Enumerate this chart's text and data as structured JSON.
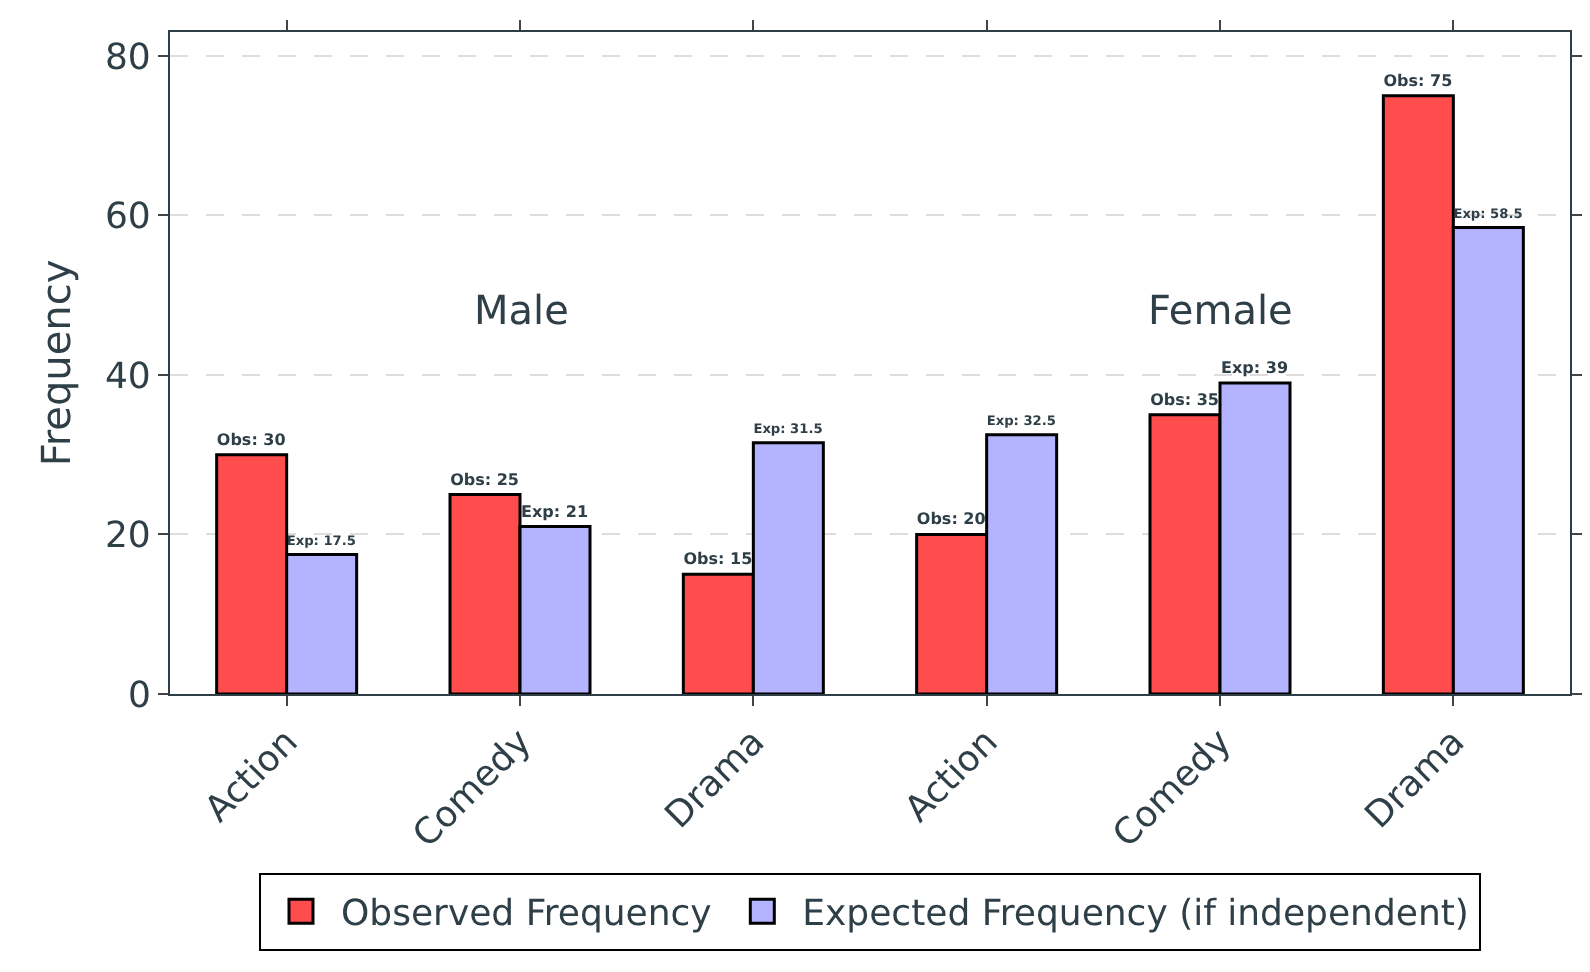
{
  "chart_data": {
    "type": "bar",
    "ylabel": "Frequency",
    "categories": [
      "Action",
      "Comedy",
      "Drama",
      "Action",
      "Comedy",
      "Drama"
    ],
    "series": [
      {
        "name": "Observed Frequency",
        "color": "#ff4d4d",
        "values": [
          30,
          25,
          15,
          20,
          35,
          75
        ],
        "value_labels": [
          "Obs: 30",
          "Obs: 25",
          "Obs: 15",
          "Obs: 20",
          "Obs: 35",
          "Obs: 75"
        ]
      },
      {
        "name": "Expected Frequency (if independent)",
        "color": "#b3b3ff",
        "values": [
          17.5,
          21,
          31.5,
          32.5,
          39,
          58.5
        ],
        "value_labels": [
          "Exp: 17.5",
          "Exp: 21",
          "Exp: 31.5",
          "Exp: 32.5",
          "Exp: 39",
          "Exp: 58.5"
        ]
      }
    ],
    "annotations": [
      "Male",
      "Female"
    ],
    "ylim": [
      0,
      83
    ],
    "yticks": [
      0,
      20,
      40,
      60,
      80
    ],
    "grid": "y",
    "legend": "bottom"
  }
}
